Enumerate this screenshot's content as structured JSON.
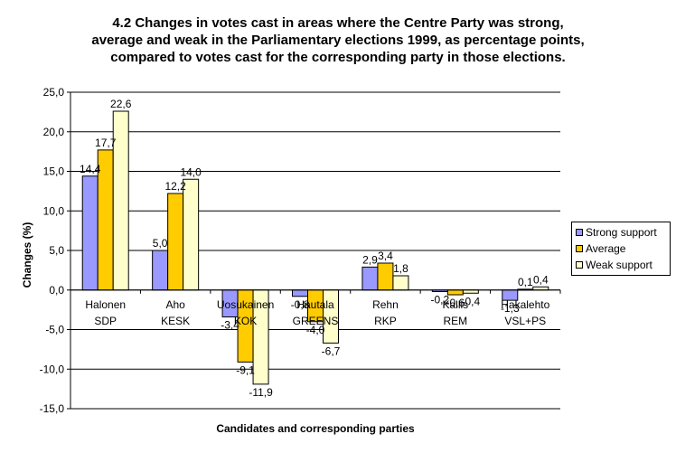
{
  "chart_data": {
    "type": "bar",
    "title_lines": [
      "4.2 Changes in votes cast in areas where the Centre Party was strong,",
      "average and weak in the Parliamentary elections 1999, as percentage points,",
      "compared to votes cast for the corresponding party in those elections."
    ],
    "xlabel": "Candidates and corresponding parties",
    "ylabel": "Changes (%)",
    "ylim": [
      -15,
      25
    ],
    "yticks": [
      25,
      20,
      15,
      10,
      5,
      0,
      -5,
      -10,
      -15
    ],
    "ytick_labels": [
      "25,0",
      "20,0",
      "15,0",
      "10,0",
      "5,0",
      "0,0",
      "-5,0",
      "-10,0",
      "-15,0"
    ],
    "gridlines": true,
    "legend_position": "right",
    "categories": [
      {
        "candidate": "Halonen",
        "party": "SDP"
      },
      {
        "candidate": "Aho",
        "party": "KESK"
      },
      {
        "candidate": "Uosukainen",
        "party": "KOK"
      },
      {
        "candidate": "Hautala",
        "party": "GREENS"
      },
      {
        "candidate": "Rehn",
        "party": "RKP"
      },
      {
        "candidate": "Kallis",
        "party": "REM"
      },
      {
        "candidate": "Hakalehto",
        "party": "VSL+PS"
      }
    ],
    "series": [
      {
        "name": "Strong support",
        "color": "#9999ff",
        "values": [
          14.4,
          5.0,
          -3.4,
          -0.8,
          2.9,
          -0.2,
          -1.3
        ],
        "labels": [
          "14,4",
          "5,0",
          "-3,4",
          "-0,8",
          "2,9",
          "-0,2",
          "-1,3"
        ]
      },
      {
        "name": "Average",
        "color": "#ffcc00",
        "values": [
          17.7,
          12.2,
          -9.1,
          -4.0,
          3.4,
          -0.6,
          0.1
        ],
        "labels": [
          "17,7",
          "12,2",
          "-9,1",
          "-4,0",
          "3,4",
          "-0,6",
          "0,1"
        ]
      },
      {
        "name": "Weak support",
        "color": "#ffffcc",
        "values": [
          22.6,
          14.0,
          -11.9,
          -6.7,
          1.8,
          -0.4,
          0.4
        ],
        "labels": [
          "22,6",
          "14,0",
          "-11,9",
          "-6,7",
          "1,8",
          "-0,4",
          "0,4"
        ]
      }
    ]
  }
}
